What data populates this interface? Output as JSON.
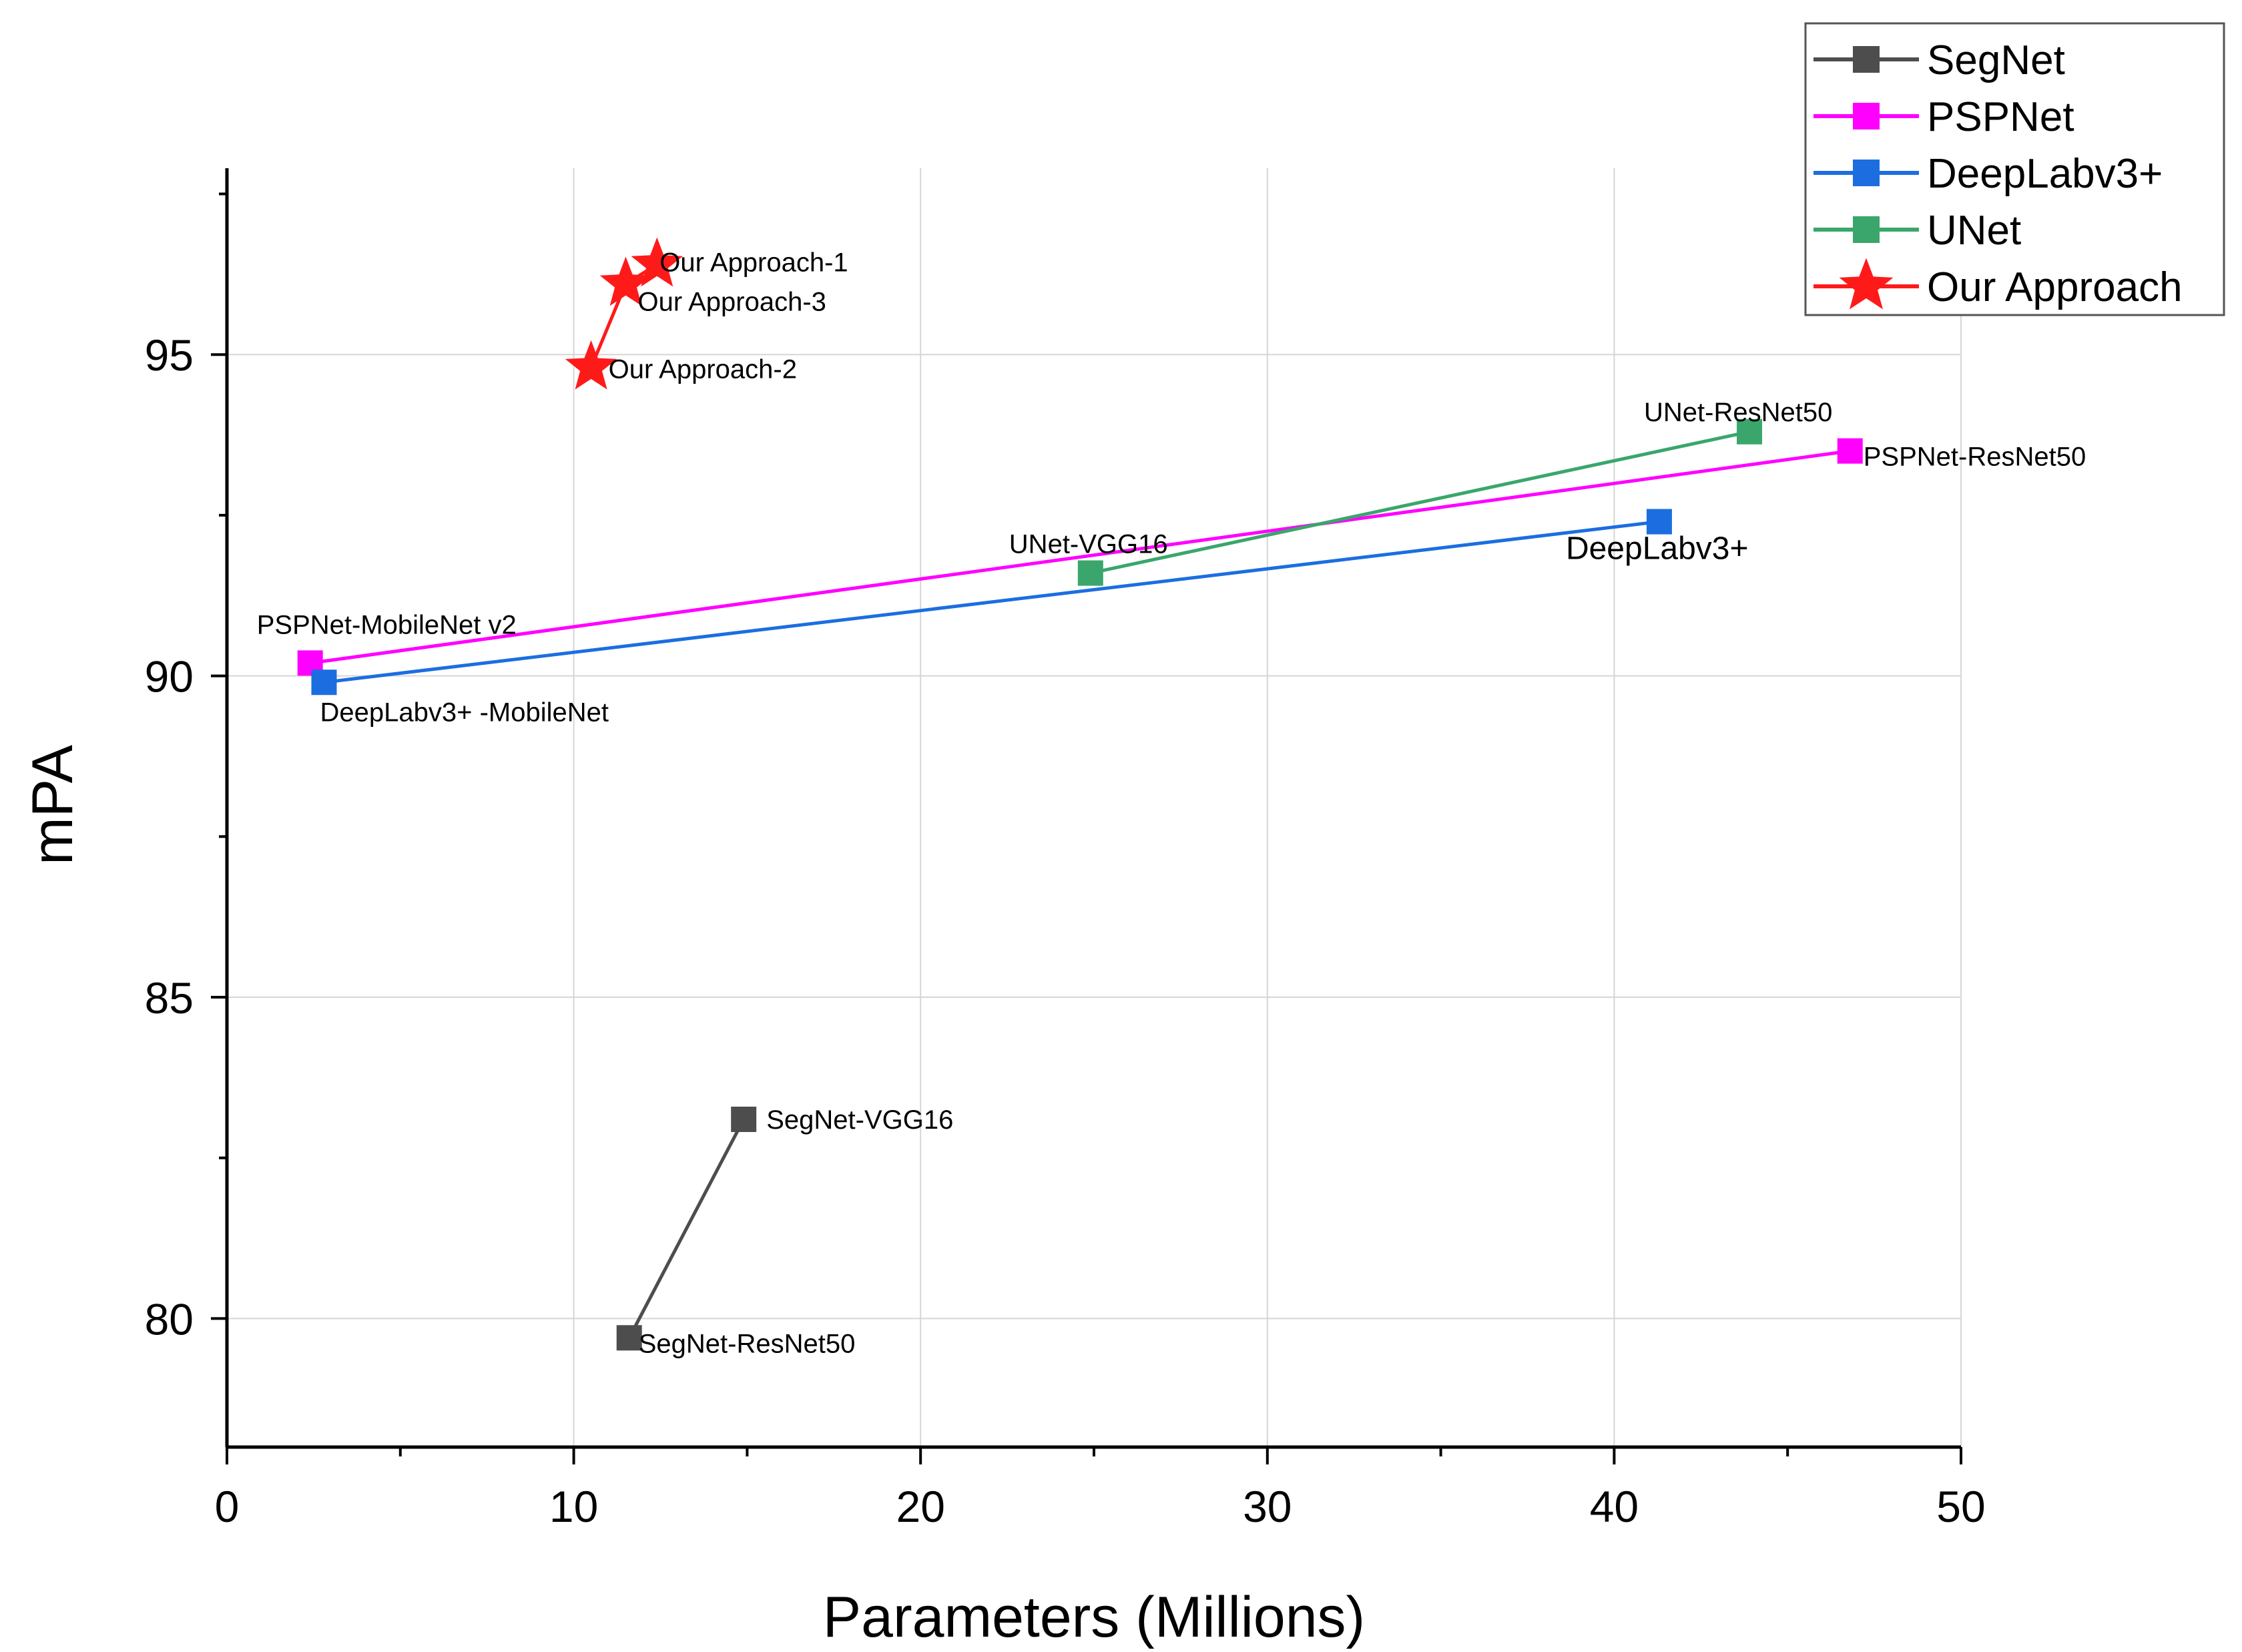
{
  "chart_data": {
    "type": "line",
    "title": "",
    "xlabel": "Parameters (Millions)",
    "ylabel": "mPA",
    "xlim": [
      0,
      50
    ],
    "ylim": [
      78,
      97.9
    ],
    "x_ticks": [
      0,
      10,
      20,
      30,
      40,
      50
    ],
    "y_ticks": [
      80,
      85,
      90,
      95
    ],
    "grid": true,
    "legend_position": "top-right",
    "series": [
      {
        "name": "SegNet",
        "color": "#4d4d4d",
        "marker": "square",
        "points": [
          {
            "x": 11.6,
            "y": 79.7,
            "label": "SegNet-ResNet50"
          },
          {
            "x": 14.9,
            "y": 83.1,
            "label": "SegNet-VGG16"
          }
        ]
      },
      {
        "name": "PSPNet",
        "color": "#ff00ff",
        "marker": "square",
        "points": [
          {
            "x": 2.4,
            "y": 90.2,
            "label": "PSPNet-MobileNet v2"
          },
          {
            "x": 46.8,
            "y": 93.5,
            "label": "PSPNet-ResNet50"
          }
        ]
      },
      {
        "name": "DeepLabv3+",
        "color": "#1c6ee0",
        "marker": "square",
        "points": [
          {
            "x": 2.8,
            "y": 89.9,
            "label": "DeepLabv3+ -MobileNet"
          },
          {
            "x": 41.3,
            "y": 92.4,
            "label": "DeepLabv3+"
          }
        ]
      },
      {
        "name": "UNet",
        "color": "#3aa66b",
        "marker": "square",
        "points": [
          {
            "x": 24.9,
            "y": 91.6,
            "label": "UNet-VGG16"
          },
          {
            "x": 43.9,
            "y": 93.8,
            "label": "UNet-ResNet50"
          }
        ]
      },
      {
        "name": "Our Approach",
        "color": "#ff1a1a",
        "marker": "star",
        "points": [
          {
            "x": 10.5,
            "y": 94.8,
            "label": "Our Approach-2"
          },
          {
            "x": 11.5,
            "y": 96.1,
            "label": "Our Approach-3"
          },
          {
            "x": 12.4,
            "y": 96.4,
            "label": "Our Approach-1"
          }
        ]
      }
    ]
  }
}
